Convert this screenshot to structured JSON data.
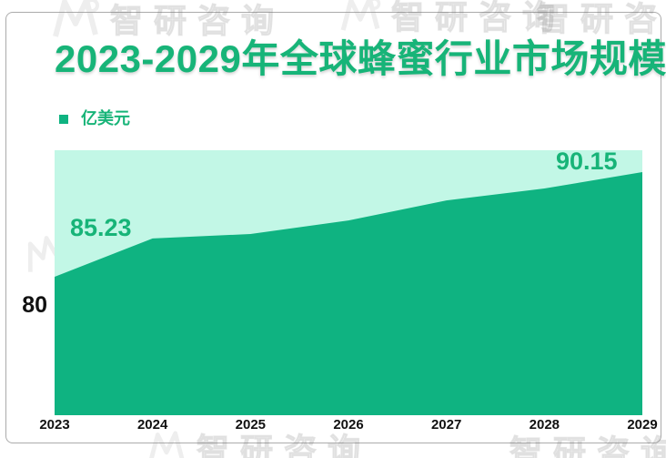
{
  "page": {
    "watermark_text": "智研咨询",
    "colors": {
      "title_green": "#17b478",
      "area_green": "#0fb381",
      "plot_bg_mint": "#c2f7e6",
      "axis_text": "#111111",
      "card_border": "#ababab"
    }
  },
  "chart_data": {
    "type": "area",
    "title": "2023-2029年全球蜂蜜行业市场规模",
    "unit_label": "亿美元",
    "categories": [
      "2023",
      "2024",
      "2025",
      "2026",
      "2027",
      "2028",
      "2029"
    ],
    "values": [
      85.23,
      87.03,
      87.24,
      87.88,
      88.82,
      89.38,
      90.15
    ],
    "data_labels": {
      "first": "85.23",
      "last": "90.15"
    },
    "y_axis": {
      "visible_tick": "80",
      "ylim_estimate": [
        79.3,
        91.2
      ]
    },
    "x_axis": {
      "ticks": [
        "2023",
        "2024",
        "2025",
        "2026",
        "2027",
        "2028",
        "2029"
      ]
    },
    "legend_position": "top-left",
    "grid": false
  }
}
